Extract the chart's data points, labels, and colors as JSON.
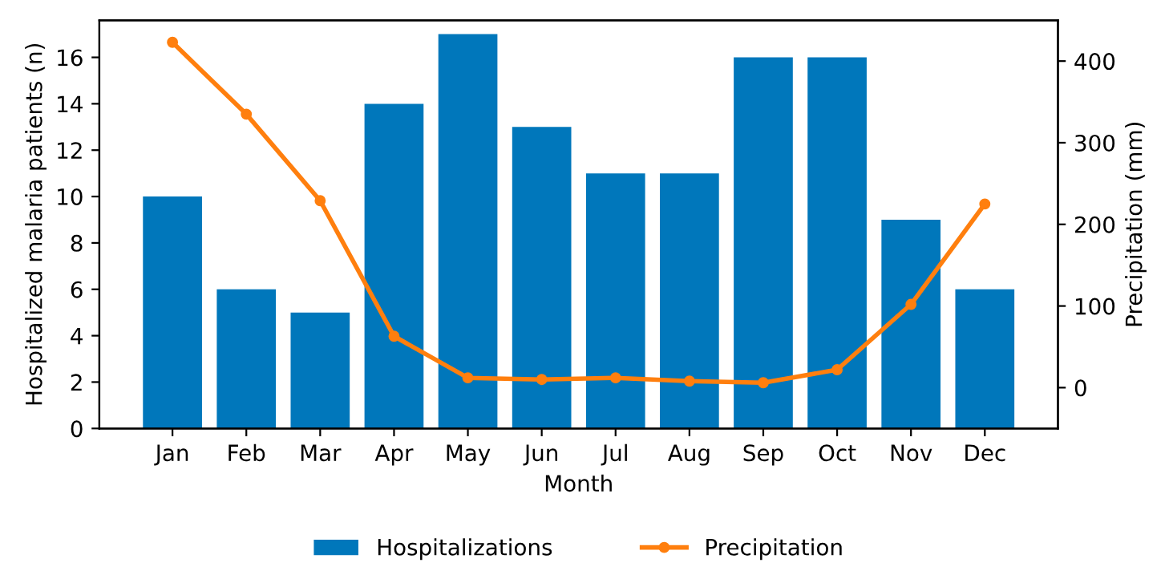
{
  "chart_data": {
    "type": "bar",
    "xlabel": "Month",
    "ylabel": "Hospitalized malaria patients (n)",
    "y2label": "Precipitation (mm)",
    "categories": [
      "Jan",
      "Feb",
      "Mar",
      "Apr",
      "May",
      "Jun",
      "Jul",
      "Aug",
      "Sep",
      "Oct",
      "Nov",
      "Dec"
    ],
    "series": [
      {
        "name": "Hospitalizations",
        "color": "#0077bb",
        "values": [
          10,
          6,
          5,
          14,
          17,
          13,
          11,
          11,
          16,
          16,
          9,
          6
        ]
      },
      {
        "name": "Precipitation",
        "type": "line",
        "axis": "y2",
        "color": "#ff7f0e",
        "marker": "circle",
        "values": [
          423,
          335,
          229,
          63,
          12,
          10,
          12,
          8,
          6,
          22,
          102,
          225
        ]
      }
    ],
    "ylim": [
      0,
      17.6
    ],
    "yticks": [
      0,
      2,
      4,
      6,
      8,
      10,
      12,
      14,
      16
    ],
    "y2lim": [
      -50,
      450
    ],
    "y2ticks": [
      0,
      100,
      200,
      300,
      400
    ],
    "grid": false,
    "legend": "bottom"
  }
}
